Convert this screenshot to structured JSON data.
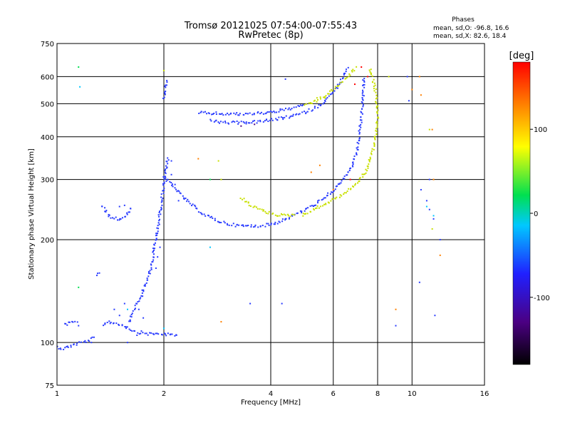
{
  "chart_data": {
    "type": "scatter",
    "title": "Tromsø 20121025 07:54:00-07:55:43",
    "subtitle": "RwPretec (8p)",
    "xlabel": "Frequency [MHz]",
    "ylabel": "Stationary phase Virtual Height [km]",
    "xscale": "log",
    "yscale": "log",
    "xlim": [
      1,
      16
    ],
    "ylim": [
      75,
      750
    ],
    "grid": true,
    "xticks": [
      1,
      2,
      4,
      6,
      8,
      10,
      16
    ],
    "xtick_labels": [
      "1",
      "2",
      "4",
      "6",
      "8",
      "10",
      "16"
    ],
    "yticks": [
      75,
      100,
      200,
      300,
      400,
      500,
      600,
      750
    ],
    "ytick_labels": [
      "75",
      "100",
      "200",
      "300",
      "400",
      "500",
      "600",
      "750"
    ],
    "colorbar": {
      "label": "[deg]",
      "range": [
        -180,
        180
      ],
      "ticks": [
        100,
        0,
        -100
      ],
      "tick_labels": [
        "100",
        "0",
        "-100"
      ],
      "colors": [
        "#000000",
        "#4b0082",
        "#2020ff",
        "#00c8ff",
        "#00e050",
        "#ffff00",
        "#ff8000",
        "#ff0000"
      ]
    },
    "stats": {
      "heading": "Phases",
      "line_o": "mean, sd,O: -96.8, 16.6",
      "line_x": "mean, sd,X:  82.6, 18.4"
    },
    "series": [
      {
        "kind": "segment",
        "color": "#2a3cff",
        "points": [
          [
            1.0,
            97
          ],
          [
            1.04,
            96
          ],
          [
            1.1,
            98
          ],
          [
            1.16,
            100
          ],
          [
            1.22,
            101
          ],
          [
            1.28,
            104
          ]
        ]
      },
      {
        "kind": "segment",
        "color": "#2a3cff",
        "points": [
          [
            1.05,
            113
          ],
          [
            1.1,
            114
          ],
          [
            1.15,
            115
          ]
        ]
      },
      {
        "kind": "segment",
        "color": "#2a3cff",
        "points": [
          [
            1.35,
            113
          ],
          [
            1.4,
            115
          ],
          [
            1.45,
            114
          ],
          [
            1.5,
            113
          ],
          [
            1.55,
            112
          ],
          [
            1.6,
            110
          ],
          [
            1.65,
            108
          ],
          [
            1.7,
            107
          ],
          [
            1.75,
            107
          ],
          [
            1.8,
            106
          ],
          [
            1.9,
            106
          ],
          [
            2.0,
            106
          ],
          [
            2.1,
            105
          ],
          [
            2.2,
            105
          ]
        ]
      },
      {
        "kind": "segment",
        "color": "#2a3cff",
        "points": [
          [
            1.6,
            115
          ],
          [
            1.62,
            120
          ],
          [
            1.65,
            125
          ],
          [
            1.68,
            130
          ],
          [
            1.72,
            135
          ],
          [
            1.76,
            145
          ],
          [
            1.8,
            155
          ],
          [
            1.84,
            165
          ],
          [
            1.86,
            175
          ],
          [
            1.88,
            190
          ],
          [
            1.9,
            200
          ],
          [
            1.92,
            215
          ],
          [
            1.94,
            230
          ],
          [
            1.96,
            250
          ],
          [
            1.98,
            270
          ],
          [
            2.0,
            290
          ],
          [
            2.02,
            310
          ],
          [
            2.04,
            330
          ],
          [
            2.06,
            350
          ]
        ]
      },
      {
        "kind": "segment",
        "color": "#2a3cff",
        "points": [
          [
            1.3,
            158
          ],
          [
            1.33,
            160
          ]
        ]
      },
      {
        "kind": "segment",
        "color": "#2a3cff",
        "points": [
          [
            1.34,
            250
          ],
          [
            1.38,
            240
          ],
          [
            1.42,
            232
          ],
          [
            1.48,
            230
          ],
          [
            1.52,
            230
          ],
          [
            1.56,
            235
          ],
          [
            1.6,
            245
          ],
          [
            1.62,
            250
          ]
        ]
      },
      {
        "kind": "segment",
        "color": "#2a3cff",
        "points": [
          [
            2.0,
            305
          ],
          [
            2.1,
            290
          ],
          [
            2.2,
            275
          ],
          [
            2.3,
            262
          ],
          [
            2.45,
            248
          ],
          [
            2.6,
            237
          ],
          [
            2.8,
            228
          ],
          [
            3.0,
            223
          ],
          [
            3.2,
            220
          ],
          [
            3.5,
            219
          ],
          [
            3.8,
            220
          ],
          [
            4.1,
            223
          ],
          [
            4.4,
            230
          ],
          [
            4.7,
            237
          ],
          [
            5.0,
            245
          ],
          [
            5.3,
            253
          ],
          [
            5.6,
            262
          ],
          [
            5.9,
            275
          ],
          [
            6.2,
            288
          ],
          [
            6.5,
            305
          ],
          [
            6.8,
            330
          ],
          [
            7.0,
            360
          ],
          [
            7.1,
            400
          ],
          [
            7.2,
            450
          ],
          [
            7.25,
            500
          ],
          [
            7.3,
            560
          ],
          [
            7.3,
            600
          ]
        ]
      },
      {
        "kind": "segment",
        "color": "#c8e000",
        "points": [
          [
            3.3,
            265
          ],
          [
            3.5,
            253
          ],
          [
            3.8,
            243
          ],
          [
            4.1,
            237
          ],
          [
            4.4,
            235
          ],
          [
            4.7,
            237
          ]
        ]
      },
      {
        "kind": "segment",
        "color": "#c8e000",
        "points": [
          [
            4.9,
            236
          ],
          [
            5.2,
            243
          ],
          [
            5.6,
            252
          ],
          [
            6.0,
            262
          ],
          [
            6.4,
            272
          ],
          [
            6.8,
            285
          ],
          [
            7.1,
            298
          ],
          [
            7.4,
            315
          ],
          [
            7.6,
            340
          ],
          [
            7.8,
            370
          ],
          [
            7.9,
            410
          ],
          [
            8.0,
            450
          ],
          [
            7.95,
            500
          ],
          [
            7.85,
            560
          ],
          [
            7.7,
            610
          ],
          [
            7.6,
            640
          ]
        ]
      },
      {
        "kind": "segment",
        "color": "#2a3cff",
        "points": [
          [
            2.7,
            445
          ],
          [
            3.0,
            440
          ],
          [
            3.3,
            440
          ],
          [
            3.6,
            442
          ],
          [
            4.0,
            447
          ],
          [
            4.4,
            455
          ],
          [
            4.8,
            465
          ],
          [
            5.2,
            480
          ],
          [
            5.5,
            495
          ],
          [
            5.8,
            520
          ],
          [
            6.1,
            550
          ],
          [
            6.3,
            580
          ],
          [
            6.5,
            620
          ],
          [
            6.6,
            640
          ]
        ]
      },
      {
        "kind": "segment",
        "color": "#2a3cff",
        "points": [
          [
            2.5,
            470
          ],
          [
            2.8,
            468
          ],
          [
            3.1,
            466
          ],
          [
            3.4,
            466
          ],
          [
            3.8,
            470
          ],
          [
            4.2,
            476
          ],
          [
            4.6,
            485
          ],
          [
            5.0,
            495
          ]
        ]
      },
      {
        "kind": "segment",
        "color": "#c8e000",
        "points": [
          [
            5.0,
            498
          ],
          [
            5.3,
            505
          ],
          [
            5.6,
            520
          ],
          [
            5.9,
            540
          ],
          [
            6.2,
            565
          ],
          [
            6.5,
            590
          ],
          [
            6.8,
            620
          ],
          [
            7.0,
            640
          ]
        ]
      },
      {
        "kind": "segment",
        "color": "#2a3cff",
        "points": [
          [
            2.0,
            520
          ],
          [
            2.02,
            560
          ],
          [
            2.05,
            590
          ]
        ]
      },
      {
        "kind": "scatter",
        "color": "#2a3cff",
        "points": [
          [
            1.15,
            112
          ],
          [
            1.25,
            100
          ],
          [
            1.45,
            125
          ],
          [
            1.5,
            120
          ],
          [
            1.55,
            130
          ],
          [
            1.7,
            125
          ],
          [
            1.75,
            118
          ],
          [
            1.68,
            105
          ],
          [
            1.58,
            100
          ],
          [
            1.9,
            165
          ],
          [
            1.92,
            178
          ],
          [
            1.95,
            190
          ],
          [
            2.05,
            300
          ],
          [
            2.15,
            290
          ],
          [
            2.2,
            260
          ],
          [
            1.5,
            250
          ],
          [
            1.55,
            252
          ],
          [
            2.1,
            340
          ],
          [
            2.1,
            310
          ],
          [
            3.5,
            130
          ],
          [
            4.3,
            130
          ],
          [
            4.4,
            590
          ],
          [
            9.7,
            600
          ],
          [
            9.8,
            510
          ],
          [
            11.0,
            260
          ],
          [
            11.2,
            245
          ],
          [
            11.5,
            230
          ],
          [
            12.0,
            200
          ],
          [
            10.6,
            280
          ],
          [
            11.2,
            300
          ],
          [
            9.0,
            112
          ],
          [
            10.5,
            150
          ],
          [
            11.6,
            120
          ]
        ]
      },
      {
        "kind": "scatter",
        "color": "#00c8ff",
        "points": [
          [
            1.16,
            560
          ],
          [
            1.58,
            125
          ],
          [
            2.0,
            110
          ],
          [
            2.7,
            190
          ],
          [
            11.5,
            235
          ],
          [
            11.0,
            250
          ]
        ]
      },
      {
        "kind": "scatter",
        "color": "#00e050",
        "points": [
          [
            1.15,
            640
          ],
          [
            1.15,
            145
          ],
          [
            2.7,
            300
          ]
        ]
      },
      {
        "kind": "scatter",
        "color": "#ff8000",
        "points": [
          [
            2.9,
            115
          ],
          [
            2.5,
            345
          ],
          [
            5.2,
            315
          ],
          [
            5.5,
            330
          ],
          [
            6.0,
            280
          ],
          [
            10.0,
            550
          ],
          [
            10.5,
            600
          ],
          [
            11.5,
            300
          ],
          [
            12.0,
            180
          ],
          [
            9.0,
            125
          ],
          [
            10.6,
            530
          ],
          [
            11.4,
            420
          ]
        ]
      },
      {
        "kind": "scatter",
        "color": "#ff0000",
        "points": [
          [
            6.9,
            570
          ],
          [
            7.2,
            640
          ],
          [
            7.5,
            600
          ],
          [
            6.7,
            300
          ]
        ]
      },
      {
        "kind": "scatter",
        "color": "#c8e000",
        "points": [
          [
            2.0,
            625
          ],
          [
            5.4,
            520
          ],
          [
            8.6,
            600
          ],
          [
            11.2,
            420
          ],
          [
            11.4,
            215
          ],
          [
            2.85,
            340
          ],
          [
            2.9,
            300
          ]
        ]
      },
      {
        "kind": "scatter",
        "color": "#4b0082",
        "points": [
          [
            3.3,
            430
          ],
          [
            3.6,
            435
          ]
        ]
      }
    ]
  }
}
